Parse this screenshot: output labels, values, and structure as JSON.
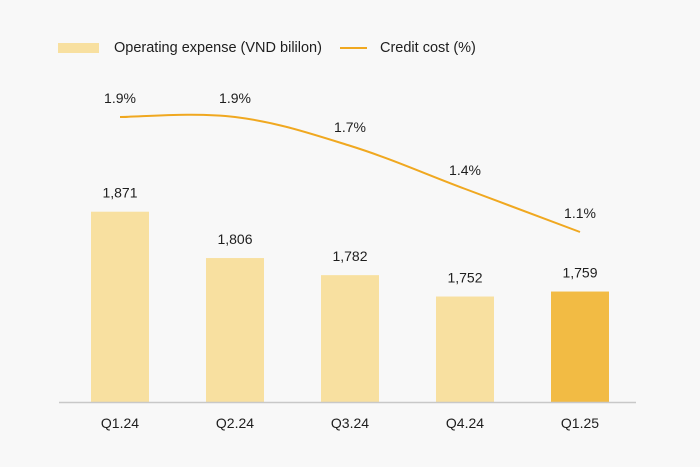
{
  "chart_data": {
    "type": "bar",
    "title": "",
    "xlabel": "",
    "ylabel": "",
    "categories": [
      "Q1.24",
      "Q2.24",
      "Q3.24",
      "Q4.24",
      "Q1.25"
    ],
    "series": [
      {
        "name": "Operating expense (VND bililon)",
        "type": "bar",
        "values": [
          1871,
          1806,
          1782,
          1752,
          1759
        ],
        "labels": [
          "1,871",
          "1,806",
          "1,782",
          "1,752",
          "1,759"
        ],
        "color": "#f8e0a0",
        "highlight_color": "#f2bb44",
        "highlight_index": 4
      },
      {
        "name": "Credit cost (%)",
        "type": "line",
        "values": [
          1.9,
          1.9,
          1.7,
          1.4,
          1.1
        ],
        "labels": [
          "1.9%",
          "1.9%",
          "1.7%",
          "1.4%",
          "1.1%"
        ],
        "color": "#f0a820"
      }
    ],
    "ylim": [
      1604,
      2140
    ],
    "y2lim": [
      0.5,
      2.2
    ],
    "grid": false,
    "legend": "top-left"
  },
  "legend": {
    "bar_label": "Operating expense (VND bililon)",
    "line_label": "Credit cost (%)"
  },
  "colors": {
    "axis": "#c8c8c8",
    "text": "#1e1e1e",
    "background": "#f8f8f8"
  }
}
